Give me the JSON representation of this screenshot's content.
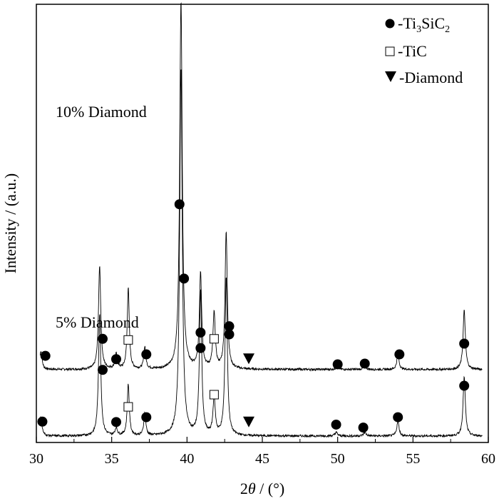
{
  "chart_data": {
    "type": "line",
    "xlabel": "2θ / (°)",
    "ylabel": "Intensity / (a.u.)",
    "xlim": [
      30,
      60
    ],
    "x_ticks": [
      "30",
      "35",
      "40",
      "45",
      "50",
      "55",
      "60"
    ],
    "x_tick_values": [
      30,
      35,
      40,
      45,
      50,
      55,
      60
    ],
    "legend": [
      {
        "marker": "filled-circle",
        "label": "-Ti3SiC2",
        "formula_parts": [
          "-Ti",
          "3",
          "SiC",
          "2"
        ]
      },
      {
        "marker": "open-square",
        "label": "-TiC"
      },
      {
        "marker": "filled-down-triangle",
        "label": "-Diamond"
      }
    ],
    "legend_position": "top-right",
    "grid": false,
    "series": [
      {
        "name": "10% Diamond",
        "baseline": 0.18,
        "peaks": [
          {
            "x": 30.3,
            "h": 0.05,
            "w": 0.09
          },
          {
            "x": 34.2,
            "h": 0.28,
            "w": 0.09
          },
          {
            "x": 35.3,
            "h": 0.04,
            "w": 0.09
          },
          {
            "x": 36.1,
            "h": 0.22,
            "w": 0.08
          },
          {
            "x": 37.2,
            "h": 0.06,
            "w": 0.08
          },
          {
            "x": 39.6,
            "h": 1.0,
            "w": 0.1
          },
          {
            "x": 40.9,
            "h": 0.26,
            "w": 0.09
          },
          {
            "x": 41.8,
            "h": 0.15,
            "w": 0.09
          },
          {
            "x": 42.6,
            "h": 0.37,
            "w": 0.09
          },
          {
            "x": 50.0,
            "h": 0.01,
            "w": 0.1
          },
          {
            "x": 51.8,
            "h": 0.01,
            "w": 0.1
          },
          {
            "x": 54.0,
            "h": 0.04,
            "w": 0.09
          },
          {
            "x": 58.4,
            "h": 0.16,
            "w": 0.09
          }
        ],
        "markers": [
          {
            "type": "circle",
            "x": 30.6,
            "y": 0.37
          },
          {
            "type": "circle",
            "x": 34.4,
            "y": 0.83
          },
          {
            "type": "circle",
            "x": 35.3,
            "y": 0.28
          },
          {
            "type": "square",
            "x": 36.1,
            "y": 0.8
          },
          {
            "type": "circle",
            "x": 37.3,
            "y": 0.41
          },
          {
            "type": "circle",
            "x": 39.8,
            "y": 2.46
          },
          {
            "type": "circle",
            "x": 40.9,
            "y": 1.0
          },
          {
            "type": "square",
            "x": 41.8,
            "y": 0.83
          },
          {
            "type": "circle",
            "x": 42.8,
            "y": 1.17
          },
          {
            "type": "triangle",
            "x": 44.1,
            "y": 0.3
          },
          {
            "type": "circle",
            "x": 50.0,
            "y": 0.14
          },
          {
            "type": "circle",
            "x": 51.8,
            "y": 0.16
          },
          {
            "type": "circle",
            "x": 54.1,
            "y": 0.41
          },
          {
            "type": "circle",
            "x": 58.4,
            "y": 0.7
          }
        ]
      },
      {
        "name": "5% Diamond",
        "baseline": 0.0,
        "peaks": [
          {
            "x": 30.3,
            "h": 0.05,
            "w": 0.09
          },
          {
            "x": 34.2,
            "h": 0.33,
            "w": 0.09
          },
          {
            "x": 35.3,
            "h": 0.02,
            "w": 0.09
          },
          {
            "x": 36.1,
            "h": 0.14,
            "w": 0.08
          },
          {
            "x": 37.2,
            "h": 0.06,
            "w": 0.08
          },
          {
            "x": 39.6,
            "h": 1.0,
            "w": 0.1
          },
          {
            "x": 40.9,
            "h": 0.39,
            "w": 0.09
          },
          {
            "x": 41.8,
            "h": 0.1,
            "w": 0.09
          },
          {
            "x": 42.6,
            "h": 0.43,
            "w": 0.09
          },
          {
            "x": 49.9,
            "h": 0.01,
            "w": 0.1
          },
          {
            "x": 51.8,
            "h": 0.01,
            "w": 0.1
          },
          {
            "x": 54.0,
            "h": 0.04,
            "w": 0.09
          },
          {
            "x": 58.4,
            "h": 0.16,
            "w": 0.09
          }
        ],
        "markers": [
          {
            "type": "circle",
            "x": 30.4,
            "y": 0.39
          },
          {
            "type": "circle",
            "x": 34.4,
            "y": 1.79
          },
          {
            "type": "circle",
            "x": 35.3,
            "y": 0.38
          },
          {
            "type": "square",
            "x": 36.1,
            "y": 0.79
          },
          {
            "type": "circle",
            "x": 37.3,
            "y": 0.51
          },
          {
            "type": "circle",
            "x": 39.5,
            "y": 6.27
          },
          {
            "type": "circle",
            "x": 40.9,
            "y": 2.38
          },
          {
            "type": "square",
            "x": 41.8,
            "y": 1.12
          },
          {
            "type": "circle",
            "x": 42.8,
            "y": 2.75
          },
          {
            "type": "triangle",
            "x": 44.1,
            "y": 0.39
          },
          {
            "type": "circle",
            "x": 49.9,
            "y": 0.31
          },
          {
            "type": "circle",
            "x": 51.7,
            "y": 0.23
          },
          {
            "type": "circle",
            "x": 54.0,
            "y": 0.51
          },
          {
            "type": "circle",
            "x": 58.4,
            "y": 1.36
          }
        ]
      }
    ]
  }
}
